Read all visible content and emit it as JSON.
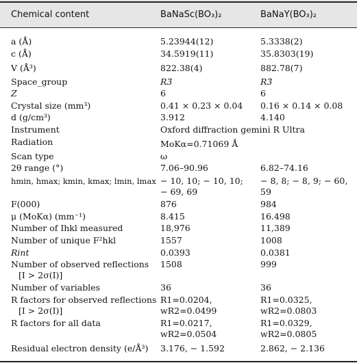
{
  "header": {
    "col0": "Chemical content",
    "col1": "BaNaSc(BO₃)₂",
    "col2": "BaNaY(BO₃)₂"
  },
  "rows": [
    {
      "label": "a (Å)",
      "v1": "5.23944(12)",
      "v2": "5.3338(2)"
    },
    {
      "label": "c (Å)",
      "v1": "34.5919(11)",
      "v2": "35.8303(19)"
    },
    {
      "label": "V (Å³)",
      "v1": "822.38(4)",
      "v2": "882.78(7)"
    },
    {
      "label": "Space_group",
      "v1": "R3̄",
      "v2": "R3̄"
    },
    {
      "label": "Z",
      "v1": "6",
      "v2": "6"
    },
    {
      "label": "Crystal size (mm³)",
      "v1": "0.41 × 0.23 × 0.04",
      "v2": "0.16 × 0.14 × 0.08"
    },
    {
      "label": "d (g/cm³)",
      "v1": "3.912",
      "v2": "4.140"
    },
    {
      "label": "Instrument",
      "v1": "Oxford diffraction gemini R Ultra",
      "v2": ""
    },
    {
      "label": "Radiation",
      "v1": "MoKα=0.71069 Å",
      "v2": ""
    },
    {
      "label": "Scan type",
      "v1": "ω",
      "v2": ""
    },
    {
      "label": "2θ range (°)",
      "v1": "7.06–90.96",
      "v2": "6.82–74.16"
    },
    {
      "label": "hmin, hmax; kmin, kmax; lmin, lmax",
      "v1": "− 10, 10; − 10, 10;",
      "v2": "− 8, 8; − 8, 9; − 60,"
    },
    {
      "label": "",
      "v1": "− 69, 69",
      "v2": "59"
    },
    {
      "label": "F(000)",
      "v1": "876",
      "v2": "984"
    },
    {
      "label": "μ (MoKα) (mm⁻¹)",
      "v1": "8.415",
      "v2": "16.498"
    },
    {
      "label": "Number of Ihkl measured",
      "v1": "18,976",
      "v2": "11,389"
    },
    {
      "label": "Number of unique F²hkl",
      "v1": "1557",
      "v2": "1008"
    },
    {
      "label": "Rint",
      "v1": "0.0393",
      "v2": "0.0381"
    },
    {
      "label": "Number of observed reflections",
      "v1": "1508",
      "v2": "999"
    },
    {
      "label": "[I > 2σ(I)]",
      "v1": "",
      "v2": ""
    },
    {
      "label": "Number of variables",
      "v1": "36",
      "v2": "36"
    },
    {
      "label": "R factors for observed reflections",
      "v1": "R1=0.0204,",
      "v2": "R1=0.0325,"
    },
    {
      "label": "[I > 2σ(I)]",
      "v1": "wR2=0.0499",
      "v2": "wR2=0.0803"
    },
    {
      "label": "R factors for all data",
      "v1": "R1=0.0217,",
      "v2": "R1=0.0329,"
    },
    {
      "label": "",
      "v1": "wR2=0.0504",
      "v2": "wR2=0.0805"
    },
    {
      "label": "Residual electron density (e/Å³)",
      "v1": "3.176, − 1.592",
      "v2": "2.862, − 2.136"
    }
  ]
}
